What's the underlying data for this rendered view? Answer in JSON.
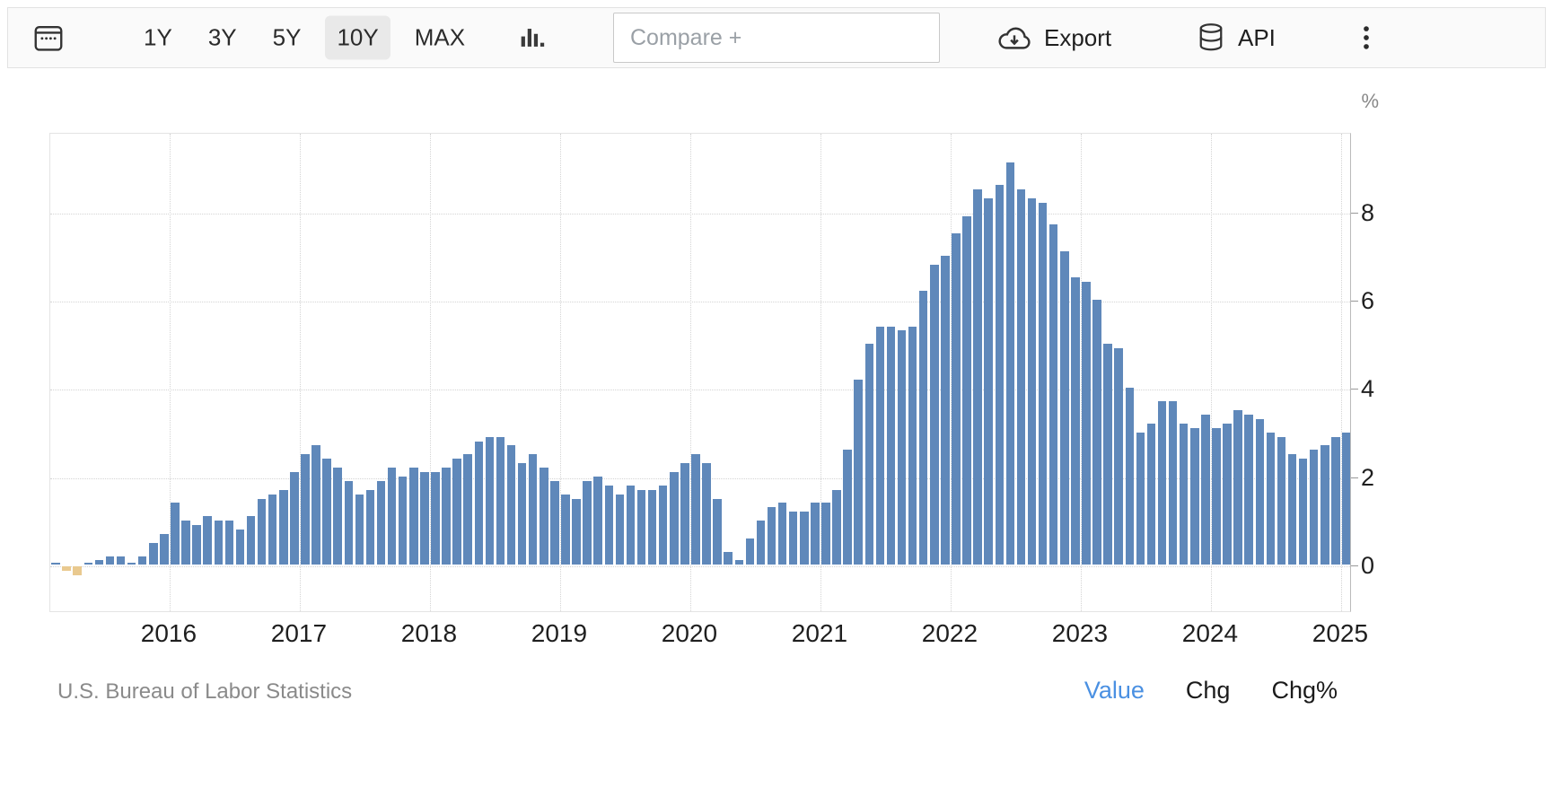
{
  "toolbar": {
    "ranges": [
      {
        "label": "1Y",
        "selected": false
      },
      {
        "label": "3Y",
        "selected": false
      },
      {
        "label": "5Y",
        "selected": false
      },
      {
        "label": "10Y",
        "selected": true
      },
      {
        "label": "MAX",
        "selected": false
      }
    ],
    "compare_placeholder": "Compare +",
    "export_label": "Export",
    "api_label": "API"
  },
  "chart_data": {
    "type": "bar",
    "title": "",
    "ylabel": "%",
    "frequency": "monthly",
    "start_month": "2015-02",
    "end_month": "2025-01",
    "values": [
      0.0,
      -0.1,
      -0.2,
      0.0,
      0.1,
      0.2,
      0.2,
      0.0,
      0.2,
      0.5,
      0.7,
      1.4,
      1.0,
      0.9,
      1.1,
      1.0,
      1.0,
      0.8,
      1.1,
      1.5,
      1.6,
      1.7,
      2.1,
      2.5,
      2.7,
      2.4,
      2.2,
      1.9,
      1.6,
      1.7,
      1.9,
      2.2,
      2.0,
      2.2,
      2.1,
      2.1,
      2.2,
      2.4,
      2.5,
      2.8,
      2.9,
      2.9,
      2.7,
      2.3,
      2.5,
      2.2,
      1.9,
      1.6,
      1.5,
      1.9,
      2.0,
      1.8,
      1.6,
      1.8,
      1.7,
      1.7,
      1.8,
      2.1,
      2.3,
      2.5,
      2.3,
      1.5,
      0.3,
      0.1,
      0.6,
      1.0,
      1.3,
      1.4,
      1.2,
      1.2,
      1.4,
      1.4,
      1.7,
      2.6,
      4.2,
      5.0,
      5.4,
      5.4,
      5.3,
      5.4,
      6.2,
      6.8,
      7.0,
      7.5,
      7.9,
      8.5,
      8.3,
      8.6,
      9.1,
      8.5,
      8.3,
      8.2,
      7.7,
      7.1,
      6.5,
      6.4,
      6.0,
      5.0,
      4.9,
      4.0,
      3.0,
      3.2,
      3.7,
      3.7,
      3.2,
      3.1,
      3.4,
      3.1,
      3.2,
      3.5,
      3.4,
      3.3,
      3.0,
      2.9,
      2.5,
      2.4,
      2.6,
      2.7,
      2.9,
      3.0
    ],
    "x_tick_labels": [
      "2016",
      "2017",
      "2018",
      "2019",
      "2020",
      "2021",
      "2022",
      "2023",
      "2024",
      "2025"
    ],
    "first_tick_index": 11,
    "yticks": [
      0,
      2,
      4,
      6,
      8
    ],
    "ylim": [
      -1.05,
      9.8
    ],
    "grid": "dotted",
    "legend_position": "none",
    "positive_color": "#5f88ba",
    "negative_color": "#e9c98f"
  },
  "footer": {
    "source": "U.S. Bureau of Labor Statistics",
    "active_color": "#4a90e2",
    "modes": [
      {
        "label": "Value",
        "active": true
      },
      {
        "label": "Chg",
        "active": false
      },
      {
        "label": "Chg%",
        "active": false
      }
    ]
  }
}
